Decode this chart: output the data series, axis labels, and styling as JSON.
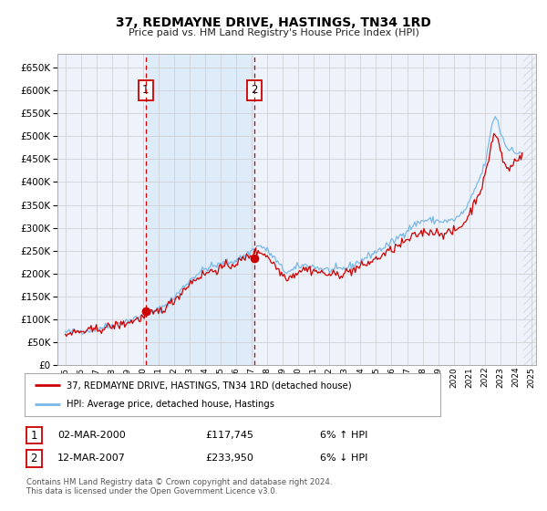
{
  "title": "37, REDMAYNE DRIVE, HASTINGS, TN34 1RD",
  "subtitle": "Price paid vs. HM Land Registry's House Price Index (HPI)",
  "ylim": [
    0,
    680000
  ],
  "ytick_vals": [
    0,
    50000,
    100000,
    150000,
    200000,
    250000,
    300000,
    350000,
    400000,
    450000,
    500000,
    550000,
    600000,
    650000
  ],
  "sale1_date": 2000.17,
  "sale1_price": 117745,
  "sale2_date": 2007.19,
  "sale2_price": 233950,
  "hpi_color": "#7ab8e8",
  "price_color": "#cc0000",
  "vline_color": "#cc0000",
  "background_color": "#ffffff",
  "grid_color": "#cccccc",
  "plot_bg_color": "#eef3fb",
  "shade_color": "#d8e8f8",
  "legend_label1": "37, REDMAYNE DRIVE, HASTINGS, TN34 1RD (detached house)",
  "legend_label2": "HPI: Average price, detached house, Hastings",
  "table_row1": [
    "1",
    "02-MAR-2000",
    "£117,745",
    "6% ↑ HPI"
  ],
  "table_row2": [
    "2",
    "12-MAR-2007",
    "£233,950",
    "6% ↓ HPI"
  ],
  "footnote": "Contains HM Land Registry data © Crown copyright and database right 2024.\nThis data is licensed under the Open Government Licence v3.0.",
  "xlim_left": 1994.5,
  "xlim_right": 2025.3,
  "hatch_start": 2024.5
}
